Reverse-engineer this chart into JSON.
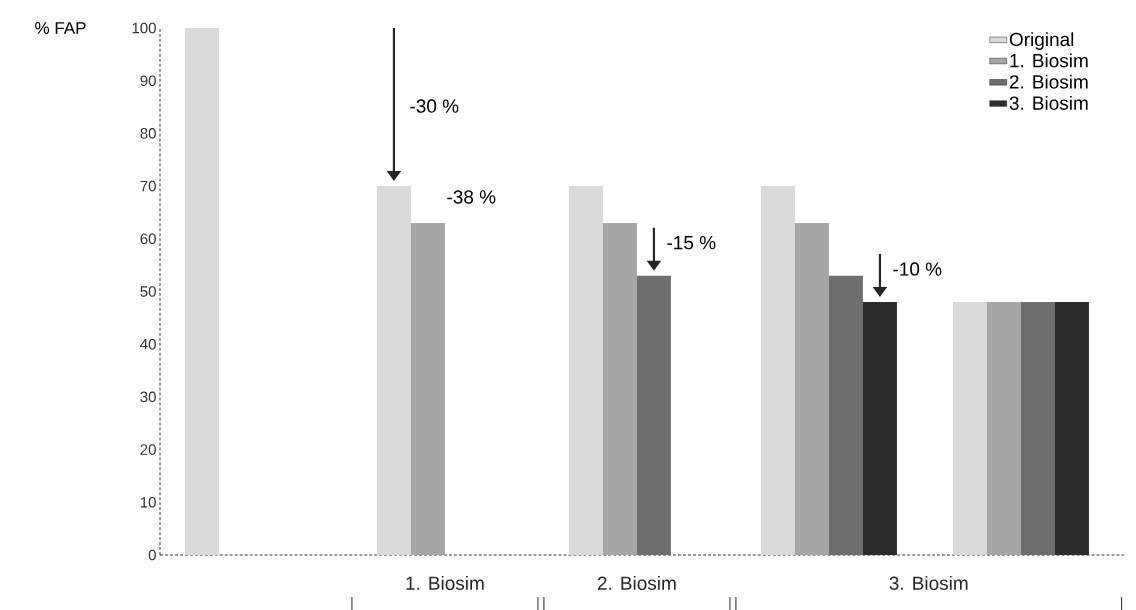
{
  "chart_data": {
    "type": "bar",
    "ylabel": "% FAP",
    "categories": [
      null,
      null,
      null,
      null,
      null
    ],
    "series": [
      {
        "name": "Original",
        "color": "#d9d9d9",
        "values": [
          100,
          70,
          70,
          70,
          48
        ]
      },
      {
        "name": "1. Biosim",
        "color": "#a6a6a6",
        "values": [
          null,
          63,
          63,
          63,
          48
        ]
      },
      {
        "name": "2. Biosim",
        "color": "#6e6e6e",
        "values": [
          null,
          null,
          53,
          53,
          48
        ]
      },
      {
        "name": "3. Biosim",
        "color": "#2d2d2d",
        "values": [
          null,
          null,
          null,
          48,
          48
        ]
      }
    ],
    "ylim": [
      0,
      100
    ],
    "yticks": [
      0,
      10,
      20,
      30,
      40,
      50,
      60,
      70,
      80,
      90,
      100
    ],
    "tick_labels": "y",
    "legend": "top right",
    "annotations": [
      "-30 %",
      "-38 %",
      "-15 %",
      "-10 %",
      "1. Biosim",
      "2. Biosim",
      "3. Biosim"
    ]
  }
}
